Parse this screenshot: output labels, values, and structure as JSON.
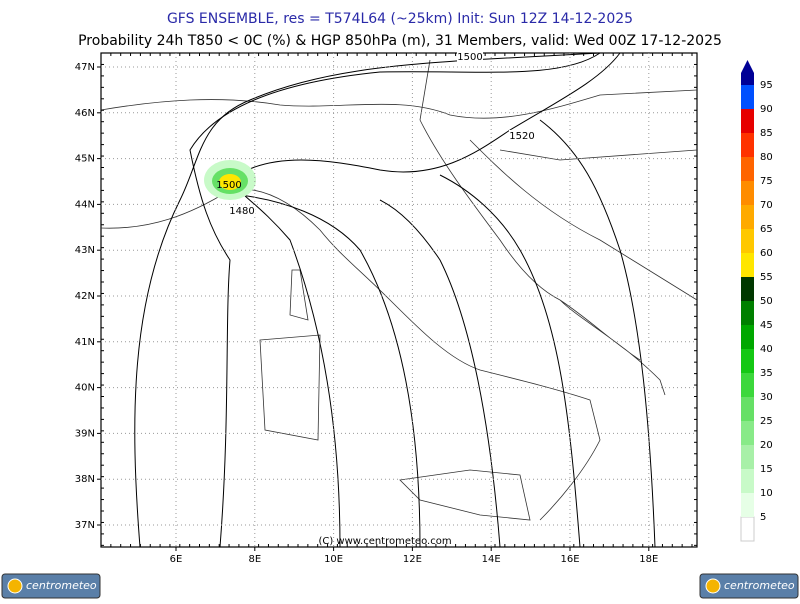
{
  "header": {
    "title": "GFS ENSEMBLE, res = T574L64 (~25km)   Init: Sun 12Z 14-12-2025",
    "subtitle": "Probability 24h T850 < 0C (%) & HGP 850hPa (m), 31 Members, valid: Wed 00Z 17-12-2025"
  },
  "map": {
    "lat_labels": [
      "47N",
      "46N",
      "45N",
      "44N",
      "43N",
      "42N",
      "41N",
      "40N",
      "39N",
      "38N",
      "37N"
    ],
    "lon_labels": [
      "6E",
      "8E",
      "10E",
      "12E",
      "14E",
      "16E",
      "18E"
    ],
    "contour_labels": [
      "1500",
      "1520",
      "1500",
      "1480"
    ],
    "copyright": "(C) www.centrometeo.com"
  },
  "colorbar": {
    "labels": [
      "5",
      "10",
      "15",
      "20",
      "25",
      "30",
      "35",
      "40",
      "45",
      "50",
      "55",
      "60",
      "65",
      "70",
      "75",
      "80",
      "85",
      "90",
      "95"
    ],
    "colors": [
      "#e6ffe6",
      "#c8fac8",
      "#a8f0a8",
      "#88ea88",
      "#66e066",
      "#3cd83c",
      "#14c814",
      "#00a800",
      "#008000",
      "#003800",
      "#ffe600",
      "#ffc800",
      "#ffaa00",
      "#ff8c00",
      "#ff6400",
      "#ff3200",
      "#e60000",
      "#0050ff",
      "#000096"
    ]
  },
  "logos": [
    "centrometeo",
    "centrometeo"
  ]
}
